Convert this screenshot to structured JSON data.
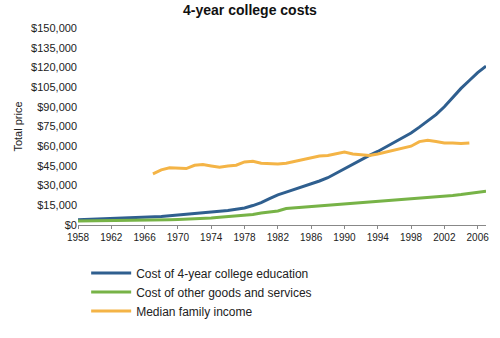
{
  "chart_data": {
    "type": "line",
    "title": "4-year college costs",
    "y_label": "Total price",
    "x": [
      1958,
      1959,
      1960,
      1961,
      1962,
      1963,
      1964,
      1965,
      1966,
      1967,
      1968,
      1969,
      1970,
      1971,
      1972,
      1973,
      1974,
      1975,
      1976,
      1977,
      1978,
      1979,
      1980,
      1981,
      1982,
      1983,
      1984,
      1985,
      1986,
      1987,
      1988,
      1989,
      1990,
      1991,
      1992,
      1993,
      1994,
      1995,
      1996,
      1997,
      1998,
      1999,
      2000,
      2001,
      2002,
      2003,
      2004,
      2005,
      2006,
      2007
    ],
    "series": [
      {
        "name": "Cost of 4-year college education",
        "color": "#2f5f8f",
        "values": [
          4000,
          4200,
          4400,
          4600,
          4800,
          5000,
          5200,
          5500,
          5800,
          6100,
          6500,
          7000,
          7500,
          8000,
          8500,
          9000,
          9500,
          10200,
          11000,
          12000,
          13000,
          14800,
          17000,
          20000,
          23000,
          25000,
          27000,
          29000,
          31000,
          33500,
          36000,
          39500,
          43000,
          46500,
          50000,
          53000,
          56000,
          59500,
          63000,
          66500,
          70000,
          74500,
          79000,
          84000,
          90000,
          97000,
          104000,
          110000,
          116000,
          121000
        ]
      },
      {
        "name": "Cost of other goods and services",
        "color": "#77b347",
        "values": [
          3000,
          3050,
          3100,
          3150,
          3200,
          3250,
          3300,
          3400,
          3500,
          3600,
          3800,
          4000,
          4200,
          4400,
          4600,
          4900,
          5400,
          5900,
          6300,
          6700,
          7200,
          8000,
          9100,
          10000,
          10700,
          12500,
          13000,
          13400,
          13800,
          14200,
          14600,
          15100,
          15500,
          16200,
          16800,
          17300,
          17800,
          18300,
          18800,
          19200,
          19600,
          20100,
          20800,
          21500,
          22000,
          22500,
          23200,
          24000,
          24800,
          25800
        ]
      },
      {
        "name": "Median family income",
        "color": "#f4b446",
        "values": [
          null,
          null,
          null,
          null,
          null,
          null,
          null,
          null,
          null,
          39000,
          42000,
          43500,
          43000,
          43000,
          45500,
          46000,
          45000,
          44000,
          45000,
          45500,
          48000,
          48500,
          47000,
          46500,
          46500,
          47000,
          48500,
          49500,
          51500,
          52500,
          53000,
          54000,
          55500,
          54000,
          53500,
          53000,
          54000,
          55500,
          56500,
          58000,
          60000,
          63500,
          64500,
          63500,
          62500,
          62500,
          62000,
          62500,
          null,
          null
        ]
      }
    ],
    "xlim": [
      1958,
      2007
    ],
    "xticks": [
      1958,
      1962,
      1966,
      1970,
      1974,
      1978,
      1982,
      1986,
      1990,
      1994,
      1998,
      2002,
      2006
    ],
    "ylim": [
      0,
      150000
    ],
    "yticks": [
      {
        "value": 0,
        "label": "$0"
      },
      {
        "value": 15000,
        "label": "$15,000"
      },
      {
        "value": 30000,
        "label": "$30,000"
      },
      {
        "value": 45000,
        "label": "$45,000"
      },
      {
        "value": 60000,
        "label": "$60,000"
      },
      {
        "value": 75000,
        "label": "$75,000"
      },
      {
        "value": 90000,
        "label": "$90,000"
      },
      {
        "value": 105000,
        "label": "$105,000"
      },
      {
        "value": 120000,
        "label": "$120,000"
      },
      {
        "value": 135000,
        "label": "$135,000"
      },
      {
        "value": 150000,
        "label": "$150,000"
      }
    ],
    "grid": false,
    "legend": "bottom"
  }
}
